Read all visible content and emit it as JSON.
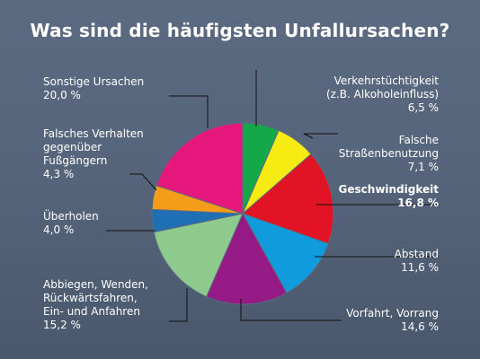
{
  "title": "Was sind die häufigsten Unfallursachen?",
  "chart_data": {
    "type": "pie",
    "title": "Was sind die häufigsten Unfallursachen?",
    "slices": [
      {
        "lines": [
          "Verkehrstüchtigkeit",
          "(z.B. Alkoholeinfluss)"
        ],
        "value": 6.5,
        "value_label": "6,5 %",
        "color": "#14a84a",
        "bold": false
      },
      {
        "lines": [
          "Falsche",
          "Straßenbenutzung"
        ],
        "value": 7.1,
        "value_label": "7,1 %",
        "color": "#f6ec13",
        "bold": false
      },
      {
        "lines": [
          "Geschwindigkeit"
        ],
        "value": 16.8,
        "value_label": "16,8 %",
        "color": "#e21325",
        "bold": true
      },
      {
        "lines": [
          "Abstand"
        ],
        "value": 11.6,
        "value_label": "11,6 %",
        "color": "#0f9bdc",
        "bold": false
      },
      {
        "lines": [
          "Vorfahrt, Vorrang"
        ],
        "value": 14.6,
        "value_label": "14,6 %",
        "color": "#951a85",
        "bold": false
      },
      {
        "lines": [
          "Abbiegen, Wenden,",
          "Rückwärtsfahren,",
          "Ein- und Anfahren"
        ],
        "value": 15.2,
        "value_label": "15,2 %",
        "color": "#8ec98d",
        "bold": false
      },
      {
        "lines": [
          "Überholen"
        ],
        "value": 4.0,
        "value_label": "4,0 %",
        "color": "#1e6fb4",
        "bold": false
      },
      {
        "lines": [
          "Falsches Verhalten",
          "gegenüber",
          "Fußgängern"
        ],
        "value": 4.3,
        "value_label": "4,3 %",
        "color": "#f59d1a",
        "bold": false
      },
      {
        "lines": [
          "Sonstige Ursachen"
        ],
        "value": 20.0,
        "value_label": "20,0 %",
        "color": "#e6177c",
        "bold": false
      }
    ]
  }
}
